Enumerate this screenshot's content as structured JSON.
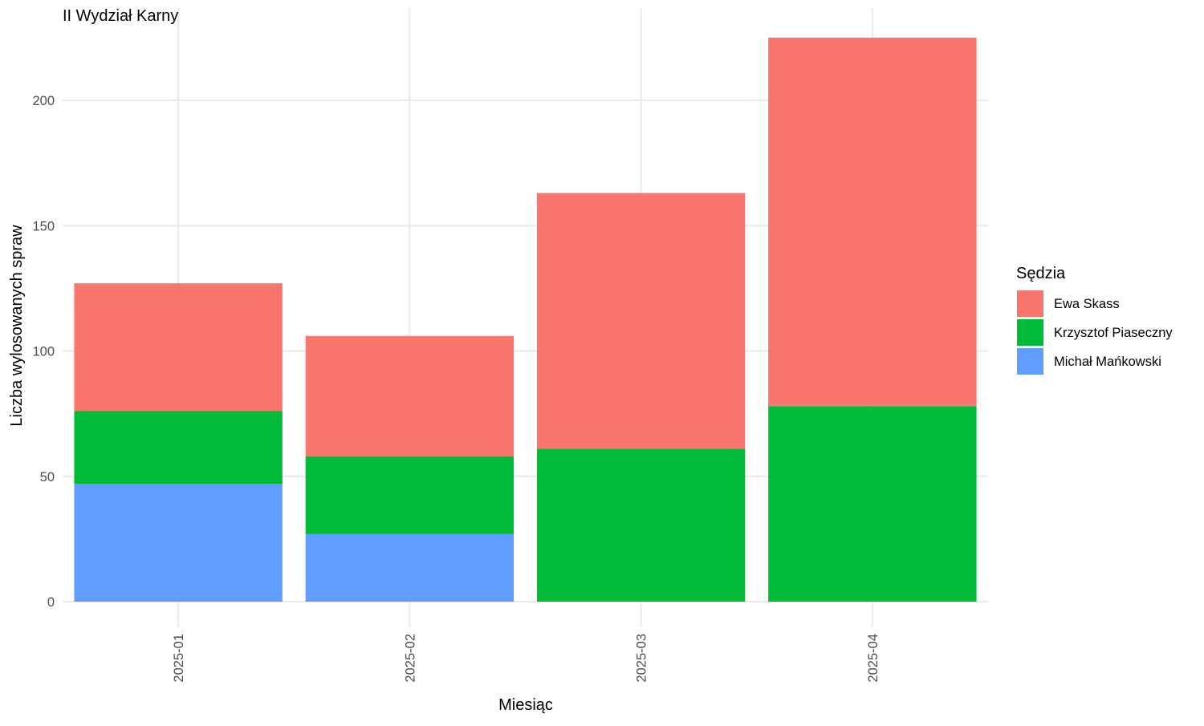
{
  "chart_data": {
    "type": "bar",
    "stacked": true,
    "title": "II Wydział Karny",
    "xlabel": "Miesiąc",
    "ylabel": "Liczba wylosowanych spraw",
    "categories": [
      "2025-01",
      "2025-02",
      "2025-03",
      "2025-04"
    ],
    "series": [
      {
        "name": "Michał Mańkowski",
        "color": "#619CFF",
        "values": [
          47,
          27,
          0,
          0
        ]
      },
      {
        "name": "Krzysztof Piaseczny",
        "color": "#00BA38",
        "values": [
          29,
          31,
          61,
          78
        ]
      },
      {
        "name": "Ewa Skass",
        "color": "#F8766D",
        "values": [
          51,
          48,
          102,
          147
        ]
      }
    ],
    "ylim": [
      0,
      225
    ],
    "yticks": [
      "0",
      "50",
      "100",
      "150",
      "200"
    ],
    "x_tick_rotation": "vertical",
    "grid": true,
    "legend": {
      "title": "Sędzia",
      "placement": "right",
      "order": [
        "Ewa Skass",
        "Krzysztof Piaseczny",
        "Michał Mańkowski"
      ]
    }
  }
}
